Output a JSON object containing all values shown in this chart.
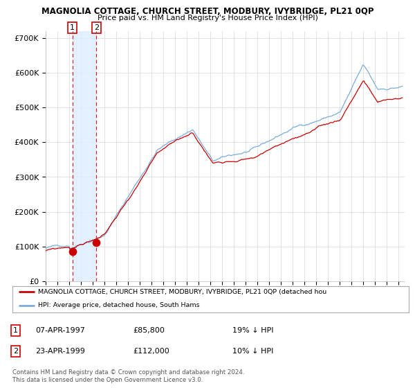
{
  "title": "MAGNOLIA COTTAGE, CHURCH STREET, MODBURY, IVYBRIDGE, PL21 0QP",
  "subtitle": "Price paid vs. HM Land Registry's House Price Index (HPI)",
  "legend_line1": "MAGNOLIA COTTAGE, CHURCH STREET, MODBURY, IVYBRIDGE, PL21 0QP (detached hou",
  "legend_line2": "HPI: Average price, detached house, South Hams",
  "sale1_date": "07-APR-1997",
  "sale1_price": "£85,800",
  "sale1_hpi": "19% ↓ HPI",
  "sale1_year": 1997.27,
  "sale1_value": 85800,
  "sale2_date": "23-APR-1999",
  "sale2_price": "£112,000",
  "sale2_hpi": "10% ↓ HPI",
  "sale2_year": 1999.31,
  "sale2_value": 112000,
  "hpi_color": "#7aaddc",
  "sale_color": "#cc0000",
  "vline_color": "#dd2222",
  "shade_color": "#ddeeff",
  "plot_bg": "#ffffff",
  "ylim": [
    0,
    720000
  ],
  "yticks": [
    0,
    100000,
    200000,
    300000,
    400000,
    500000,
    600000,
    700000
  ],
  "ytick_labels": [
    "£0",
    "£100K",
    "£200K",
    "£300K",
    "£400K",
    "£500K",
    "£600K",
    "£700K"
  ],
  "copyright": "Contains HM Land Registry data © Crown copyright and database right 2024.\nThis data is licensed under the Open Government Licence v3.0."
}
